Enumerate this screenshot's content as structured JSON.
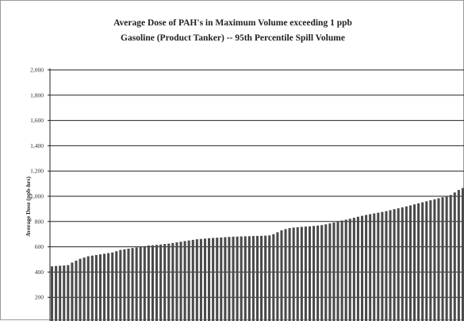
{
  "chart_data": {
    "type": "bar",
    "title": "Average Dose of PAH's in Maximum Volume exceeding 1 ppb",
    "subtitle": "Gasoline (Product Tanker) -- 95th Percentile Spill Volume",
    "xlabel": "",
    "ylabel": "Average Dose (ppb-hrs)",
    "ylim": [
      0,
      2000
    ],
    "yticks": [
      "200",
      "400",
      "600",
      "800",
      "1,000",
      "1,200",
      "1,400",
      "1,600",
      "1,800",
      "2,000"
    ],
    "grid": true,
    "bar_color": "#4a4a4a",
    "values": [
      445,
      448,
      450,
      452,
      455,
      475,
      490,
      505,
      515,
      525,
      530,
      535,
      540,
      545,
      550,
      555,
      565,
      575,
      580,
      585,
      590,
      595,
      600,
      605,
      610,
      612,
      615,
      618,
      622,
      625,
      630,
      635,
      640,
      645,
      650,
      655,
      660,
      662,
      665,
      668,
      670,
      672,
      674,
      676,
      678,
      680,
      681,
      682,
      683,
      684,
      685,
      686,
      687,
      688,
      690,
      700,
      715,
      730,
      740,
      748,
      752,
      755,
      758,
      760,
      762,
      765,
      768,
      772,
      778,
      785,
      792,
      800,
      808,
      815,
      822,
      830,
      838,
      845,
      852,
      858,
      864,
      870,
      876,
      882,
      890,
      898,
      905,
      912,
      920,
      928,
      936,
      944,
      952,
      960,
      968,
      976,
      984,
      992,
      1000,
      1010,
      1030,
      1050,
      1065
    ]
  }
}
